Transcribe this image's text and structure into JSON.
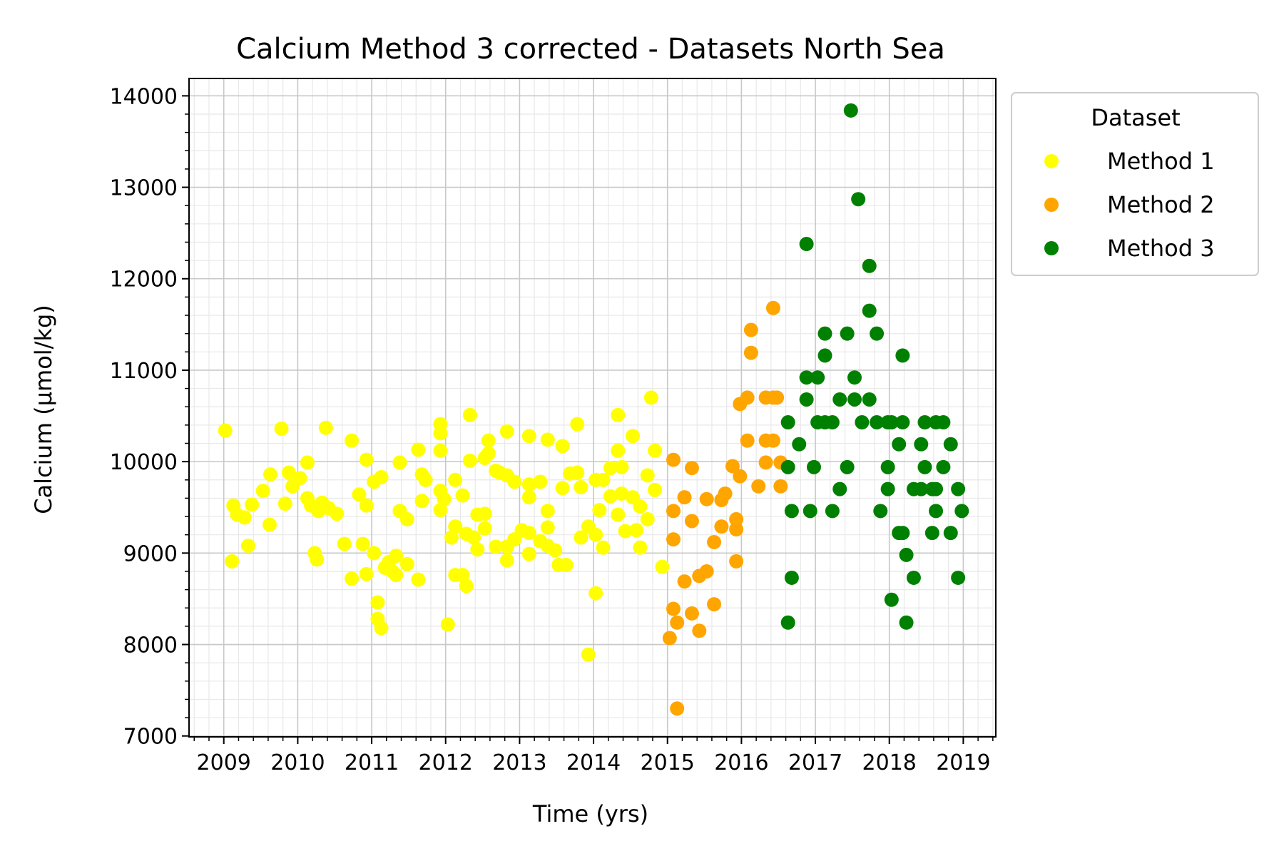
{
  "chart_data": {
    "type": "scatter",
    "title": "Calcium Method 3 corrected - Datasets North Sea",
    "xlabel": "Time (yrs)",
    "ylabel": "Calcium (µmol/kg)",
    "xlim": [
      2008.53,
      2019.44
    ],
    "ylim": [
      6990,
      14190
    ],
    "xticks": [
      2009,
      2010,
      2011,
      2012,
      2013,
      2014,
      2015,
      2016,
      2017,
      2018,
      2019
    ],
    "xtick_labels": [
      "2009",
      "2010",
      "2011",
      "2012",
      "2013",
      "2014",
      "2015",
      "2016",
      "2017",
      "2018",
      "2019"
    ],
    "yticks": [
      7000,
      8000,
      9000,
      10000,
      11000,
      12000,
      13000,
      14000
    ],
    "ytick_labels": [
      "7000",
      "8000",
      "9000",
      "10000",
      "11000",
      "12000",
      "13000",
      "14000"
    ],
    "grid": true,
    "legend": {
      "title": "Dataset",
      "position": "outside-right-top"
    },
    "series": [
      {
        "name": "Method 1",
        "color": "#ffff00",
        "points": [
          [
            2009.02,
            10340
          ],
          [
            2009.13,
            9520
          ],
          [
            2009.18,
            9420
          ],
          [
            2009.11,
            8910
          ],
          [
            2009.28,
            9390
          ],
          [
            2009.38,
            9530
          ],
          [
            2009.33,
            9080
          ],
          [
            2009.53,
            9680
          ],
          [
            2009.63,
            9860
          ],
          [
            2009.62,
            9310
          ],
          [
            2009.78,
            10360
          ],
          [
            2009.88,
            9880
          ],
          [
            2009.93,
            9730
          ],
          [
            2009.83,
            9540
          ],
          [
            2010.03,
            9820
          ],
          [
            2010.13,
            9990
          ],
          [
            2010.13,
            9600
          ],
          [
            2010.18,
            9520
          ],
          [
            2010.28,
            9460
          ],
          [
            2010.33,
            9550
          ],
          [
            2010.23,
            9000
          ],
          [
            2010.26,
            8930
          ],
          [
            2010.38,
            10370
          ],
          [
            2010.42,
            9490
          ],
          [
            2010.53,
            9430
          ],
          [
            2010.63,
            9100
          ],
          [
            2010.73,
            10230
          ],
          [
            2010.73,
            8720
          ],
          [
            2010.83,
            9640
          ],
          [
            2010.93,
            10020
          ],
          [
            2010.93,
            9520
          ],
          [
            2010.88,
            9100
          ],
          [
            2010.93,
            8770
          ],
          [
            2011.03,
            9780
          ],
          [
            2011.03,
            9000
          ],
          [
            2011.08,
            8460
          ],
          [
            2011.08,
            8280
          ],
          [
            2011.13,
            8180
          ],
          [
            2011.13,
            9830
          ],
          [
            2011.23,
            8900
          ],
          [
            2011.18,
            8840
          ],
          [
            2011.28,
            8800
          ],
          [
            2011.33,
            8970
          ],
          [
            2011.33,
            8760
          ],
          [
            2011.38,
            9990
          ],
          [
            2011.38,
            9460
          ],
          [
            2011.48,
            9370
          ],
          [
            2011.48,
            8880
          ],
          [
            2011.63,
            10130
          ],
          [
            2011.63,
            8710
          ],
          [
            2011.68,
            9860
          ],
          [
            2011.73,
            9800
          ],
          [
            2011.68,
            9570
          ],
          [
            2011.93,
            10410
          ],
          [
            2011.93,
            10310
          ],
          [
            2011.93,
            10120
          ],
          [
            2011.93,
            9680
          ],
          [
            2011.98,
            9590
          ],
          [
            2011.93,
            9470
          ],
          [
            2012.03,
            8220
          ],
          [
            2012.08,
            9170
          ],
          [
            2012.13,
            9800
          ],
          [
            2012.13,
            9290
          ],
          [
            2012.13,
            8760
          ],
          [
            2012.23,
            9630
          ],
          [
            2012.23,
            8760
          ],
          [
            2012.28,
            9210
          ],
          [
            2012.28,
            8640
          ],
          [
            2012.33,
            10510
          ],
          [
            2012.33,
            10010
          ],
          [
            2012.38,
            9170
          ],
          [
            2012.43,
            9420
          ],
          [
            2012.43,
            9040
          ],
          [
            2012.53,
            10040
          ],
          [
            2012.58,
            10230
          ],
          [
            2012.58,
            10090
          ],
          [
            2012.53,
            9430
          ],
          [
            2012.53,
            9270
          ],
          [
            2012.68,
            9900
          ],
          [
            2012.73,
            9880
          ],
          [
            2012.68,
            9070
          ],
          [
            2012.83,
            10330
          ],
          [
            2012.83,
            9850
          ],
          [
            2012.83,
            9070
          ],
          [
            2012.83,
            8920
          ],
          [
            2012.93,
            9780
          ],
          [
            2012.93,
            9150
          ],
          [
            2013.03,
            9250
          ],
          [
            2013.13,
            10280
          ],
          [
            2013.13,
            9750
          ],
          [
            2013.13,
            9610
          ],
          [
            2013.13,
            9220
          ],
          [
            2013.13,
            8990
          ],
          [
            2013.28,
            9780
          ],
          [
            2013.28,
            9130
          ],
          [
            2013.38,
            10240
          ],
          [
            2013.38,
            9460
          ],
          [
            2013.38,
            9280
          ],
          [
            2013.38,
            9080
          ],
          [
            2013.48,
            9030
          ],
          [
            2013.53,
            8870
          ],
          [
            2013.58,
            10170
          ],
          [
            2013.58,
            9710
          ],
          [
            2013.63,
            8870
          ],
          [
            2013.68,
            9870
          ],
          [
            2013.78,
            9880
          ],
          [
            2013.78,
            10410
          ],
          [
            2013.83,
            9720
          ],
          [
            2013.83,
            9170
          ],
          [
            2013.93,
            9290
          ],
          [
            2013.93,
            7890
          ],
          [
            2014.03,
            9800
          ],
          [
            2014.03,
            9200
          ],
          [
            2014.03,
            8560
          ],
          [
            2014.08,
            9470
          ],
          [
            2014.13,
            9800
          ],
          [
            2014.13,
            9060
          ],
          [
            2014.23,
            9930
          ],
          [
            2014.23,
            9620
          ],
          [
            2014.33,
            10510
          ],
          [
            2014.33,
            10120
          ],
          [
            2014.33,
            9420
          ],
          [
            2014.38,
            9940
          ],
          [
            2014.38,
            9650
          ],
          [
            2014.43,
            9240
          ],
          [
            2014.53,
            10280
          ],
          [
            2014.53,
            9610
          ],
          [
            2014.58,
            9250
          ],
          [
            2014.63,
            9510
          ],
          [
            2014.63,
            9060
          ],
          [
            2014.73,
            9850
          ],
          [
            2014.73,
            9370
          ],
          [
            2014.78,
            10700
          ],
          [
            2014.83,
            10120
          ],
          [
            2014.83,
            9690
          ],
          [
            2014.93,
            8850
          ]
        ]
      },
      {
        "name": "Method 2",
        "color": "#ffa500",
        "points": [
          [
            2015.03,
            8070
          ],
          [
            2015.08,
            10020
          ],
          [
            2015.08,
            9460
          ],
          [
            2015.08,
            9150
          ],
          [
            2015.08,
            8390
          ],
          [
            2015.13,
            8240
          ],
          [
            2015.13,
            7300
          ],
          [
            2015.23,
            9610
          ],
          [
            2015.23,
            8690
          ],
          [
            2015.33,
            9930
          ],
          [
            2015.33,
            9350
          ],
          [
            2015.33,
            8340
          ],
          [
            2015.43,
            8750
          ],
          [
            2015.43,
            8150
          ],
          [
            2015.53,
            9590
          ],
          [
            2015.53,
            8800
          ],
          [
            2015.63,
            9120
          ],
          [
            2015.63,
            8440
          ],
          [
            2015.73,
            9580
          ],
          [
            2015.73,
            9290
          ],
          [
            2015.78,
            9650
          ],
          [
            2015.88,
            9950
          ],
          [
            2015.93,
            9370
          ],
          [
            2015.93,
            9260
          ],
          [
            2015.93,
            8910
          ],
          [
            2015.98,
            10630
          ],
          [
            2015.98,
            9840
          ],
          [
            2016.08,
            10700
          ],
          [
            2016.08,
            10230
          ],
          [
            2016.13,
            11440
          ],
          [
            2016.13,
            11190
          ],
          [
            2016.23,
            9730
          ],
          [
            2016.33,
            10700
          ],
          [
            2016.33,
            10230
          ],
          [
            2016.33,
            9990
          ],
          [
            2016.43,
            11680
          ],
          [
            2016.43,
            10700
          ],
          [
            2016.43,
            10230
          ],
          [
            2016.48,
            10700
          ],
          [
            2016.53,
            9990
          ],
          [
            2016.53,
            9730
          ]
        ]
      },
      {
        "name": "Method 3",
        "color": "#008000",
        "points": [
          [
            2016.63,
            10430
          ],
          [
            2016.63,
            9940
          ],
          [
            2016.63,
            8240
          ],
          [
            2016.68,
            9460
          ],
          [
            2016.68,
            8730
          ],
          [
            2016.78,
            10190
          ],
          [
            2016.88,
            12380
          ],
          [
            2016.88,
            10920
          ],
          [
            2016.88,
            10680
          ],
          [
            2016.93,
            9460
          ],
          [
            2016.98,
            9940
          ],
          [
            2017.03,
            10920
          ],
          [
            2017.03,
            10430
          ],
          [
            2017.13,
            11400
          ],
          [
            2017.13,
            11160
          ],
          [
            2017.13,
            10430
          ],
          [
            2017.23,
            10430
          ],
          [
            2017.23,
            9460
          ],
          [
            2017.33,
            10680
          ],
          [
            2017.33,
            9700
          ],
          [
            2017.43,
            11400
          ],
          [
            2017.43,
            9940
          ],
          [
            2017.48,
            13840
          ],
          [
            2017.53,
            10920
          ],
          [
            2017.53,
            10680
          ],
          [
            2017.58,
            12870
          ],
          [
            2017.63,
            10430
          ],
          [
            2017.73,
            12140
          ],
          [
            2017.73,
            11650
          ],
          [
            2017.73,
            10680
          ],
          [
            2017.83,
            11400
          ],
          [
            2017.83,
            10430
          ],
          [
            2017.88,
            9460
          ],
          [
            2017.98,
            10430
          ],
          [
            2017.98,
            9940
          ],
          [
            2017.98,
            9700
          ],
          [
            2018.03,
            10430
          ],
          [
            2018.03,
            8490
          ],
          [
            2018.13,
            10190
          ],
          [
            2018.13,
            9220
          ],
          [
            2018.18,
            11160
          ],
          [
            2018.18,
            10430
          ],
          [
            2018.18,
            9220
          ],
          [
            2018.23,
            8980
          ],
          [
            2018.23,
            8240
          ],
          [
            2018.33,
            9700
          ],
          [
            2018.33,
            8730
          ],
          [
            2018.43,
            10190
          ],
          [
            2018.43,
            9700
          ],
          [
            2018.48,
            10430
          ],
          [
            2018.48,
            9940
          ],
          [
            2018.58,
            9700
          ],
          [
            2018.58,
            9220
          ],
          [
            2018.63,
            10430
          ],
          [
            2018.63,
            9700
          ],
          [
            2018.63,
            9460
          ],
          [
            2018.73,
            10430
          ],
          [
            2018.73,
            9940
          ],
          [
            2018.83,
            10190
          ],
          [
            2018.83,
            9220
          ],
          [
            2018.93,
            9700
          ],
          [
            2018.93,
            8730
          ],
          [
            2018.98,
            9460
          ]
        ]
      }
    ]
  }
}
